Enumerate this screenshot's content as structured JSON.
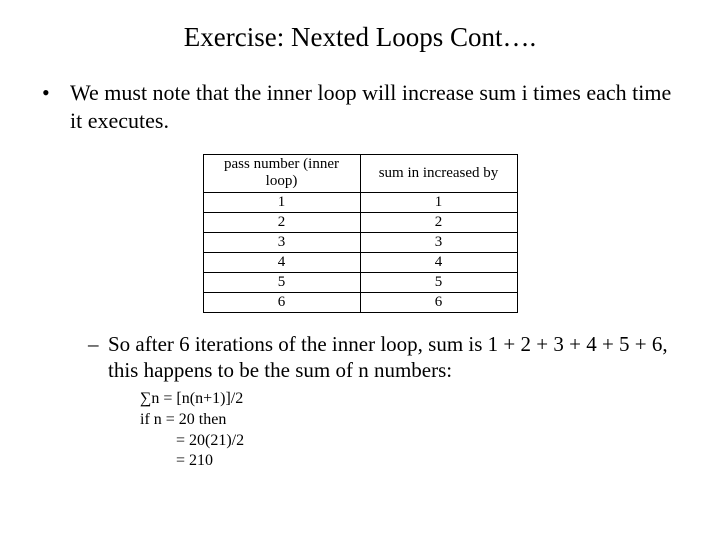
{
  "title": "Exercise: Nexted Loops Cont….",
  "bullet1": "We must note that the inner loop will increase sum i times each time it executes.",
  "table": {
    "header_col1": "pass number (inner loop)",
    "header_col2": "sum in increased by",
    "rows": [
      {
        "c1": "1",
        "c2": "1"
      },
      {
        "c1": "2",
        "c2": "2"
      },
      {
        "c1": "3",
        "c2": "3"
      },
      {
        "c1": "4",
        "c2": "4"
      },
      {
        "c1": "5",
        "c2": "5"
      },
      {
        "c1": "6",
        "c2": "6"
      }
    ],
    "border_color": "#000000",
    "background_color": "#ffffff",
    "fontsize": 15
  },
  "bullet2": "So after 6 iterations of the inner loop, sum is 1 + 2 + 3 + 4 + 5 + 6, this happens to be the sum of n numbers:",
  "formula": {
    "line1": "∑n = [n(n+1)]/2",
    "line2": "if n = 20 then",
    "line3": "=   20(21)/2",
    "line4": "=   210"
  },
  "colors": {
    "text": "#000000",
    "background": "#ffffff"
  },
  "typography": {
    "family": "Times New Roman",
    "title_size": 27,
    "body_size": 22,
    "sub_size": 21,
    "formula_size": 16
  }
}
